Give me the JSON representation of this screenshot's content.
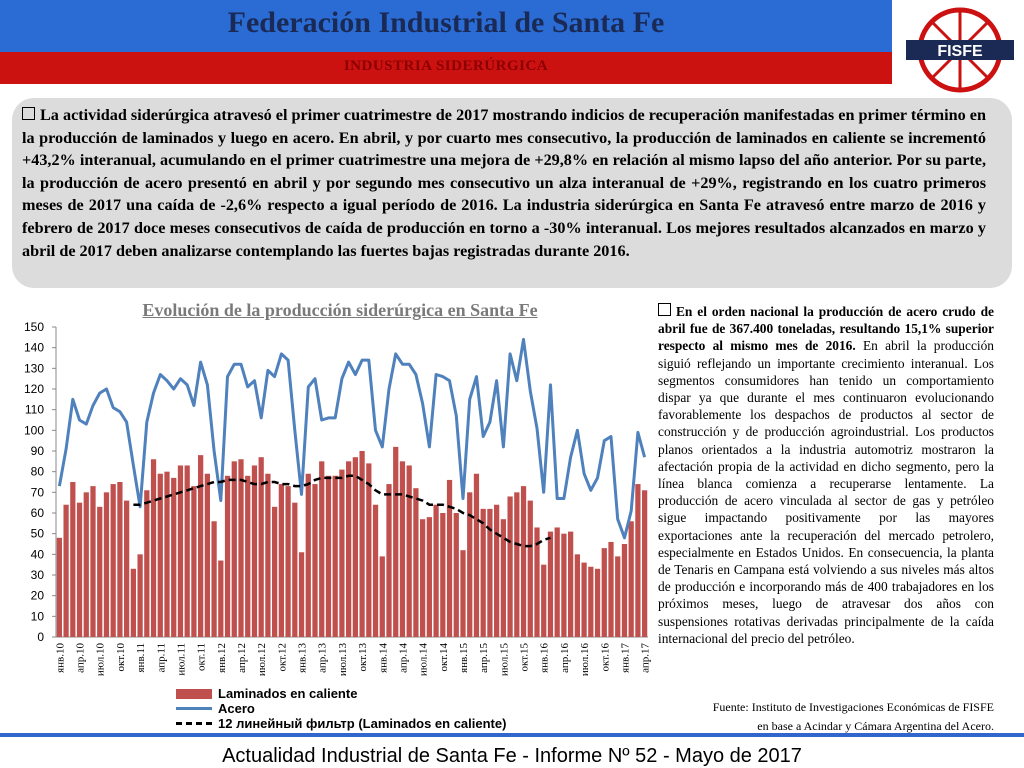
{
  "header": {
    "title": "Federación Industrial de Santa Fe",
    "subtitle": "INDUSTRIA SIDERÚRGICA",
    "logo_text": "FISFE"
  },
  "summary": {
    "text": "La actividad siderúrgica atravesó el primer cuatrimestre de 2017 mostrando indicios de recuperación manifestadas en primer término en la producción de laminados y luego en acero. En abril, y por cuarto mes consecutivo, la producción de laminados en caliente se incrementó +43,2% interanual, acumulando en el primer cuatrimestre una mejora de +29,8% en relación al mismo lapso del año anterior. Por su parte, la producción de acero presentó en abril y por segundo mes consecutivo un alza interanual de +29%, registrando en los cuatro primeros meses de 2017 una caída de -2,6% respecto a igual período de 2016. La industria siderúrgica en Santa Fe atravesó entre marzo de 2016 y febrero de 2017 doce meses consecutivos de caída de producción en torno a -30% interanual. Los mejores resultados alcanzados en marzo y abril de 2017 deben analizarse contemplando las fuertes bajas registradas durante 2016."
  },
  "right_panel": {
    "bold_intro": "En el orden nacional la producción de acero crudo de abril fue de 367.400 toneladas, resultando 15,1% superior respecto al mismo mes de 2016.",
    "body": "En abril la producción siguió reflejando un importante crecimiento interanual. Los segmentos consumidores han tenido un comportamiento dispar ya que durante el mes continuaron evolucionando favorablemente los despachos de productos al sector de construcción y de producción agroindustrial. Los productos planos orientados a la industria automotriz mostraron la afectación propia de la actividad en dicho segmento, pero la línea blanca comienza a recuperarse lentamente. La producción de acero vinculada al sector de gas y petróleo sigue impactando positivamente por las mayores exportaciones ante la recuperación del mercado petrolero, especialmente en Estados Unidos. En consecuencia, la planta de Tenaris en Campana está volviendo a sus niveles más altos de producción e incorporando más de 400 trabajadores en los próximos meses, luego de atravesar dos años con suspensiones rotativas derivadas principalmente de la caída internacional del precio del petróleo.",
    "source_line1": "Fuente: Instituto de Investigaciones Económicas de FISFE",
    "source_line2": "en base a Acindar y Cámara Argentina del Acero."
  },
  "footer": {
    "text": "Actualidad Industrial de Santa Fe - Informe Nº 52 - Mayo de 2017"
  },
  "colors": {
    "header_blue": "#2b6bd4",
    "header_red": "#cc1111",
    "bar": "#c0504d",
    "line": "#4f81bd",
    "trend": "#000000"
  },
  "chart_data": {
    "type": "bar",
    "title": "Evolución de la producción siderúrgica en Santa Fe",
    "ylim": [
      0,
      150
    ],
    "yticks": [
      0,
      10,
      20,
      30,
      40,
      50,
      60,
      70,
      80,
      90,
      100,
      110,
      120,
      130,
      140,
      150
    ],
    "grid": false,
    "legend_position": "bottom-left",
    "x_tick_labels": [
      "янв.10",
      "апр.10",
      "июл.10",
      "окт.10",
      "янв.11",
      "апр.11",
      "июл.11",
      "окт.11",
      "янв.12",
      "апр.12",
      "июл.12",
      "окт.12",
      "янв.13",
      "апр.13",
      "июл.13",
      "окт.13",
      "янв.14",
      "апр.14",
      "июл.14",
      "окт.14",
      "янв.15",
      "апр.15",
      "июл.15",
      "окт.15",
      "янв.16",
      "апр.16",
      "июл.16",
      "окт.16",
      "янв.17",
      "апр.17"
    ],
    "categories_count": 88,
    "series": [
      {
        "name": "Laminados en caliente",
        "kind": "bar",
        "values": [
          48,
          64,
          75,
          65,
          70,
          73,
          63,
          70,
          74,
          75,
          66,
          33,
          40,
          71,
          86,
          79,
          80,
          77,
          83,
          83,
          73,
          88,
          79,
          56,
          37,
          78,
          85,
          86,
          78,
          83,
          87,
          79,
          63,
          74,
          73,
          65,
          41,
          79,
          74,
          85,
          78,
          78,
          81,
          85,
          87,
          90,
          84,
          64,
          39,
          74,
          92,
          85,
          83,
          72,
          57,
          58,
          64,
          60,
          76,
          60,
          42,
          70,
          79,
          62,
          62,
          64,
          57,
          68,
          70,
          73,
          66,
          53,
          35,
          51,
          53,
          50,
          51,
          40,
          36,
          34,
          33,
          43,
          46,
          39,
          45,
          56,
          74,
          71
        ]
      },
      {
        "name": "Acero",
        "kind": "line",
        "values": [
          73,
          91,
          115,
          105,
          103,
          112,
          118,
          120,
          111,
          109,
          104,
          83,
          63,
          104,
          118,
          127,
          124,
          120,
          125,
          122,
          112,
          133,
          122,
          90,
          66,
          126,
          132,
          132,
          121,
          124,
          106,
          129,
          126,
          137,
          134,
          100,
          69,
          121,
          125,
          105,
          106,
          106,
          125,
          133,
          127,
          134,
          134,
          100,
          92,
          120,
          137,
          132,
          132,
          127,
          113,
          92,
          127,
          126,
          124,
          107,
          67,
          115,
          126,
          97,
          104,
          124,
          92,
          137,
          124,
          144,
          119,
          101,
          70,
          122,
          67,
          67,
          87,
          100,
          79,
          71,
          77,
          95,
          97,
          57,
          48,
          61,
          99,
          87
        ]
      },
      {
        "name": "12 линейный фильтр (Laminados en caliente)",
        "kind": "dashed-line",
        "start_index": 11,
        "values": [
          64,
          64,
          65,
          66,
          67,
          68,
          69,
          70,
          71,
          72,
          73,
          74,
          75,
          75,
          76,
          76,
          76,
          75,
          74,
          74,
          75,
          75,
          74,
          74,
          73,
          73,
          74,
          76,
          77,
          77,
          77,
          77,
          78,
          78,
          76,
          74,
          71,
          69,
          69,
          69,
          69,
          68,
          67,
          66,
          64,
          64,
          64,
          63,
          62,
          60,
          59,
          57,
          55,
          52,
          50,
          48,
          46,
          45,
          44,
          44,
          45,
          47,
          48
        ]
      }
    ]
  }
}
